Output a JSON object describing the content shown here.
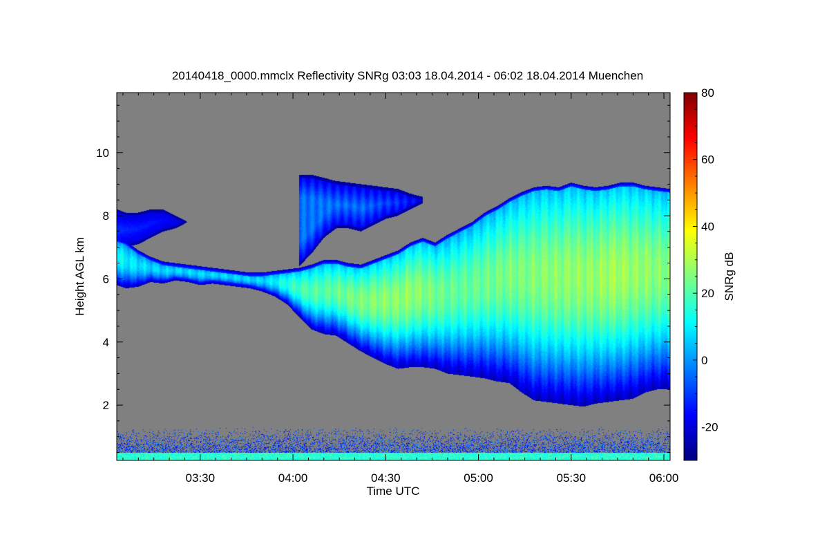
{
  "chart_data": {
    "type": "heatmap",
    "title": "20140418_0000.mmclx Reflectivity SNRg   03:03 18.04.2014 - 06:02 18.04.2014 Muenchen",
    "xlabel": "Time UTC",
    "ylabel": "Height AGL km",
    "colorbar_label": "SNRg dB",
    "x_unit": "minutes after 03:00 UTC",
    "xlim": [
      3,
      182
    ],
    "ylim": [
      0.25,
      11.9
    ],
    "clim": [
      -30,
      80
    ],
    "x_ticks": [
      {
        "value": 30,
        "label": "03:30"
      },
      {
        "value": 60,
        "label": "04:00"
      },
      {
        "value": 90,
        "label": "04:30"
      },
      {
        "value": 120,
        "label": "05:00"
      },
      {
        "value": 150,
        "label": "05:30"
      },
      {
        "value": 180,
        "label": "06:00"
      }
    ],
    "y_ticks": [
      {
        "value": 2,
        "label": "2"
      },
      {
        "value": 4,
        "label": "4"
      },
      {
        "value": 6,
        "label": "6"
      },
      {
        "value": 8,
        "label": "8"
      },
      {
        "value": 10,
        "label": "10"
      }
    ],
    "colorbar_ticks": [
      {
        "value": -20,
        "label": "-20"
      },
      {
        "value": 0,
        "label": "0"
      },
      {
        "value": 20,
        "label": "20"
      },
      {
        "value": 40,
        "label": "40"
      },
      {
        "value": 60,
        "label": "60"
      },
      {
        "value": 80,
        "label": "80"
      }
    ],
    "colormap": [
      "#00007f",
      "#0000ff",
      "#007fff",
      "#00ffff",
      "#7fff7f",
      "#ffff00",
      "#ff7f00",
      "#ff0000",
      "#7f0000"
    ],
    "background_color": "#808080",
    "cloud_boundary": {
      "time": [
        3,
        6,
        10,
        14,
        18,
        22,
        26,
        30,
        34,
        38,
        42,
        46,
        50,
        54,
        58,
        62,
        66,
        70,
        74,
        78,
        82,
        86,
        90,
        94,
        98,
        102,
        106,
        110,
        114,
        118,
        122,
        126,
        130,
        134,
        138,
        142,
        146,
        150,
        154,
        158,
        162,
        166,
        170,
        174,
        178,
        182
      ],
      "base_km": [
        5.8,
        5.7,
        5.75,
        5.9,
        5.85,
        5.95,
        5.9,
        5.8,
        5.85,
        5.8,
        5.75,
        5.7,
        5.6,
        5.45,
        5.2,
        4.8,
        4.4,
        4.25,
        4.2,
        3.95,
        3.7,
        3.5,
        3.3,
        3.15,
        3.2,
        3.2,
        3.15,
        3.0,
        2.95,
        2.9,
        2.85,
        2.75,
        2.7,
        2.4,
        2.15,
        2.1,
        2.05,
        2.0,
        1.95,
        2.05,
        2.1,
        2.15,
        2.2,
        2.4,
        2.5,
        2.5
      ],
      "top_km": [
        7.3,
        7.2,
        6.9,
        6.7,
        6.55,
        6.5,
        6.45,
        6.4,
        6.35,
        6.3,
        6.25,
        6.2,
        6.2,
        6.25,
        6.3,
        6.35,
        6.45,
        6.6,
        6.6,
        6.5,
        6.45,
        6.6,
        6.75,
        6.9,
        7.15,
        7.3,
        7.15,
        7.4,
        7.6,
        7.8,
        8.1,
        8.3,
        8.55,
        8.75,
        8.9,
        8.95,
        8.9,
        9.05,
        8.95,
        8.9,
        8.95,
        9.05,
        9.05,
        8.95,
        8.9,
        8.85
      ],
      "peak_snr_db": [
        20,
        18,
        16,
        14,
        14,
        14,
        14,
        14,
        14,
        14,
        14,
        14,
        14,
        18,
        24,
        28,
        30,
        30,
        32,
        34,
        35,
        36,
        37,
        37,
        38,
        36,
        34,
        32,
        32,
        32,
        33,
        34,
        35,
        35,
        36,
        37,
        37,
        38,
        38,
        38,
        40,
        40,
        38,
        38,
        36,
        36
      ]
    },
    "upper_plume": {
      "time": [
        62,
        66,
        70,
        74,
        78,
        82,
        86,
        90,
        94,
        98,
        102
      ],
      "base_km": [
        6.4,
        6.8,
        7.3,
        7.6,
        7.6,
        7.5,
        7.7,
        7.9,
        8.0,
        8.2,
        8.4
      ],
      "top_km": [
        9.3,
        9.3,
        9.2,
        9.1,
        9.05,
        9.0,
        8.95,
        8.9,
        8.85,
        8.7,
        8.6
      ]
    },
    "early_cloud": {
      "time": [
        3,
        6,
        10,
        14,
        18,
        22,
        26
      ],
      "base_km": [
        6.9,
        7.0,
        7.1,
        7.3,
        7.5,
        7.6,
        7.8
      ],
      "top_km": [
        8.2,
        8.1,
        8.1,
        8.2,
        8.2,
        8.0,
        7.8
      ]
    },
    "surface_clutter_km": [
      0.25,
      1.3
    ]
  }
}
